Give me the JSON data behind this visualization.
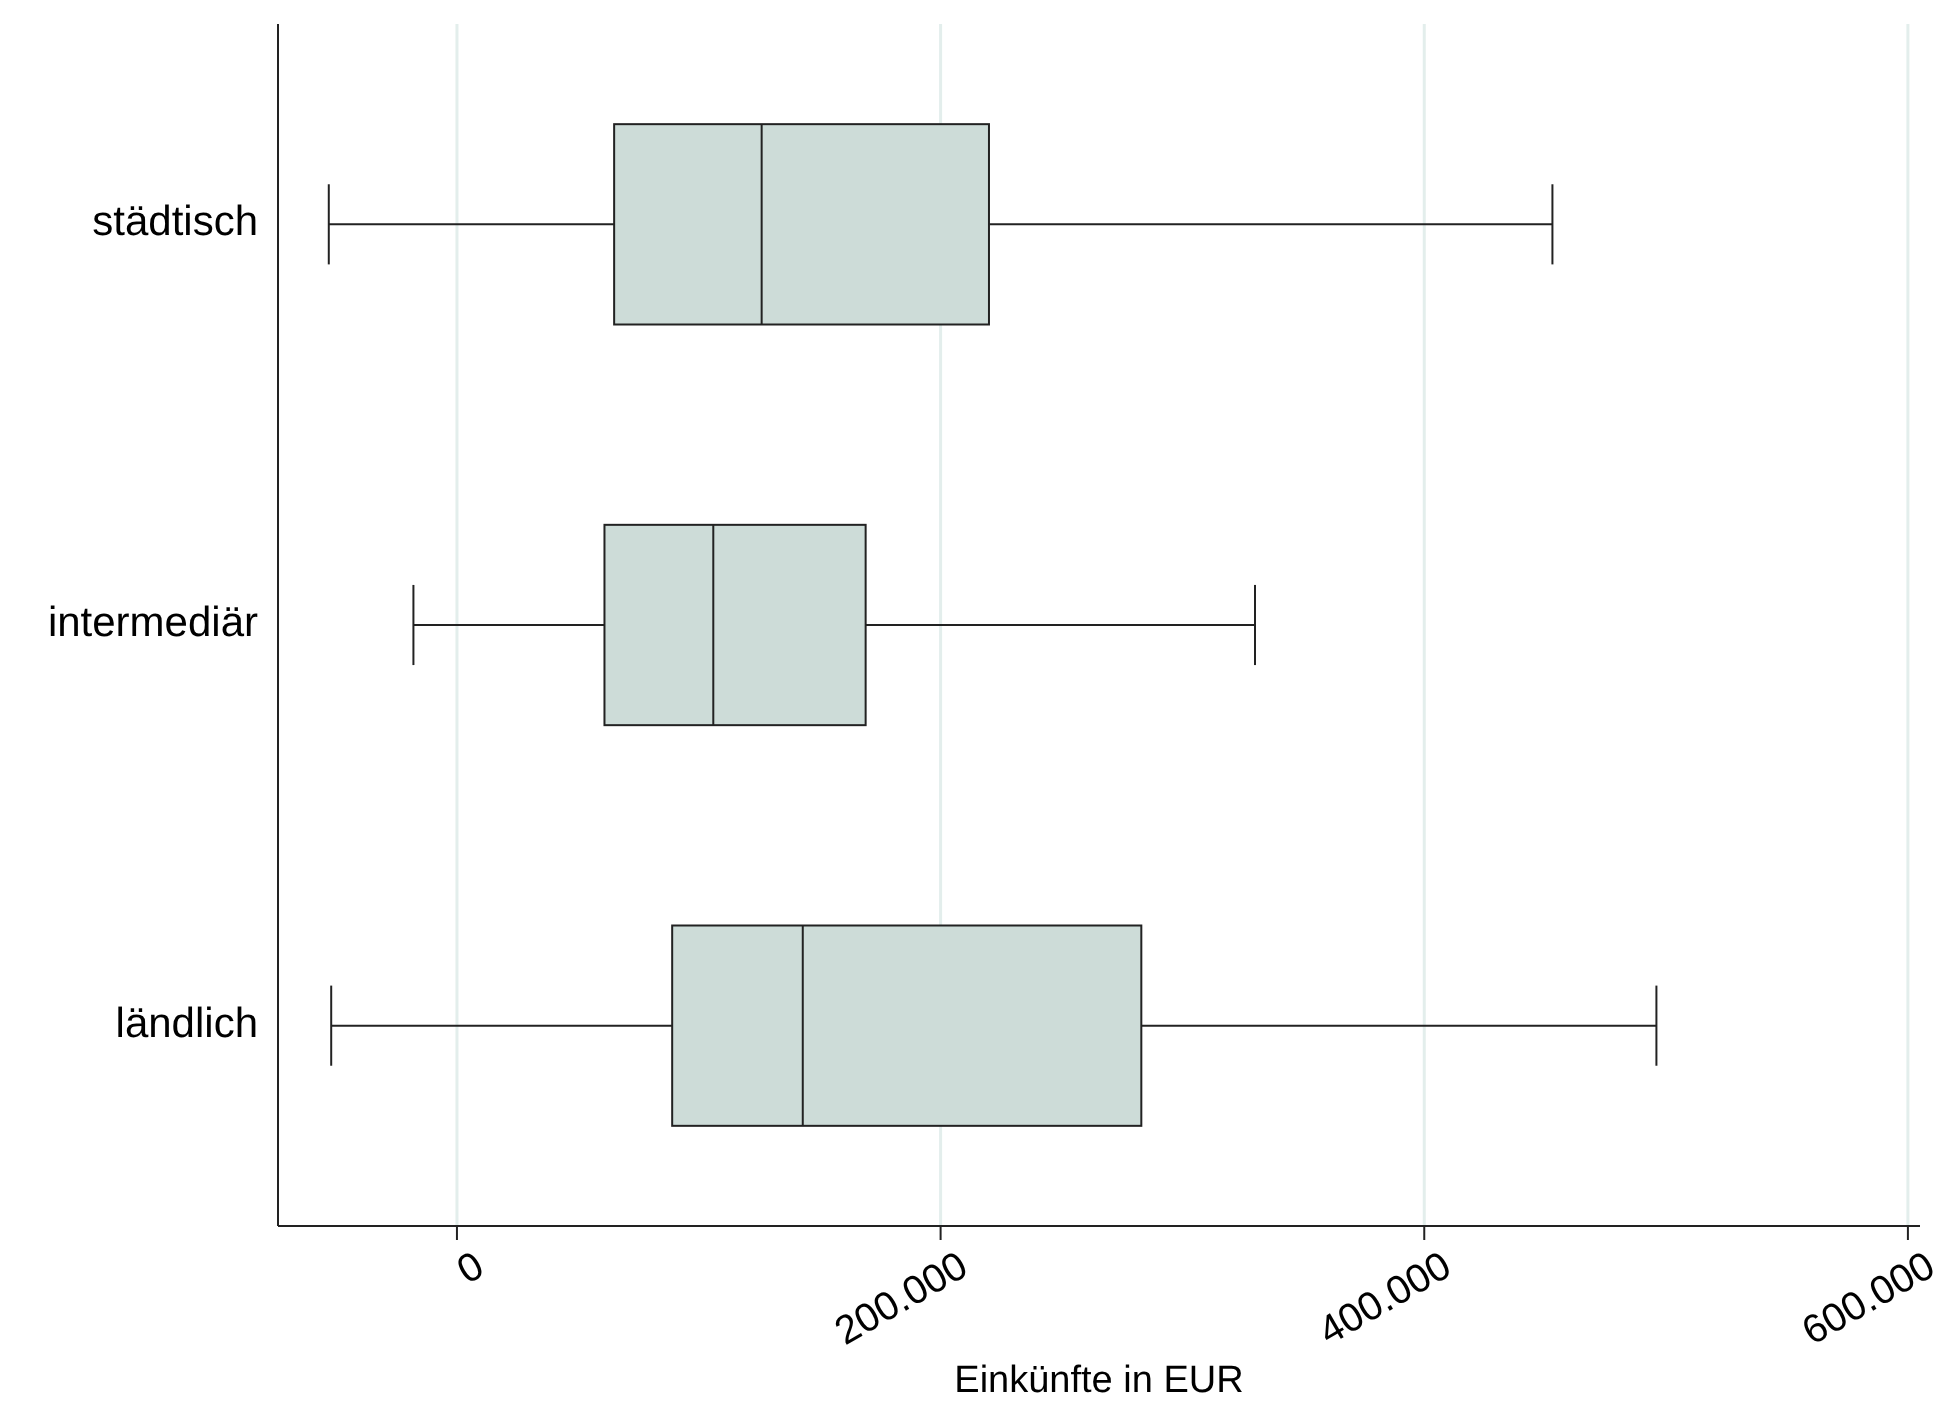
{
  "chart_data": {
    "type": "box",
    "orientation": "horizontal",
    "xlabel": "Einkünfte in EUR",
    "categories": [
      "städtisch",
      "intermediär",
      "ländlich"
    ],
    "color": "#cddcd8",
    "boxes": [
      {
        "low": -53000,
        "q1": 65000,
        "median": 126000,
        "q3": 220000,
        "high": 453000
      },
      {
        "low": -18000,
        "q1": 61000,
        "median": 106000,
        "q3": 169000,
        "high": 330000
      },
      {
        "low": -52000,
        "q1": 89000,
        "median": 143000,
        "q3": 283000,
        "high": 496000
      }
    ],
    "xlim": [
      -74000,
      605000
    ],
    "xticks": [
      0,
      {
        "value": 200000,
        "label": "200.000"
      },
      {
        "value": 400000,
        "label": "400.000"
      },
      {
        "value": 600000,
        "label": "600.000"
      }
    ],
    "grid": "x"
  }
}
